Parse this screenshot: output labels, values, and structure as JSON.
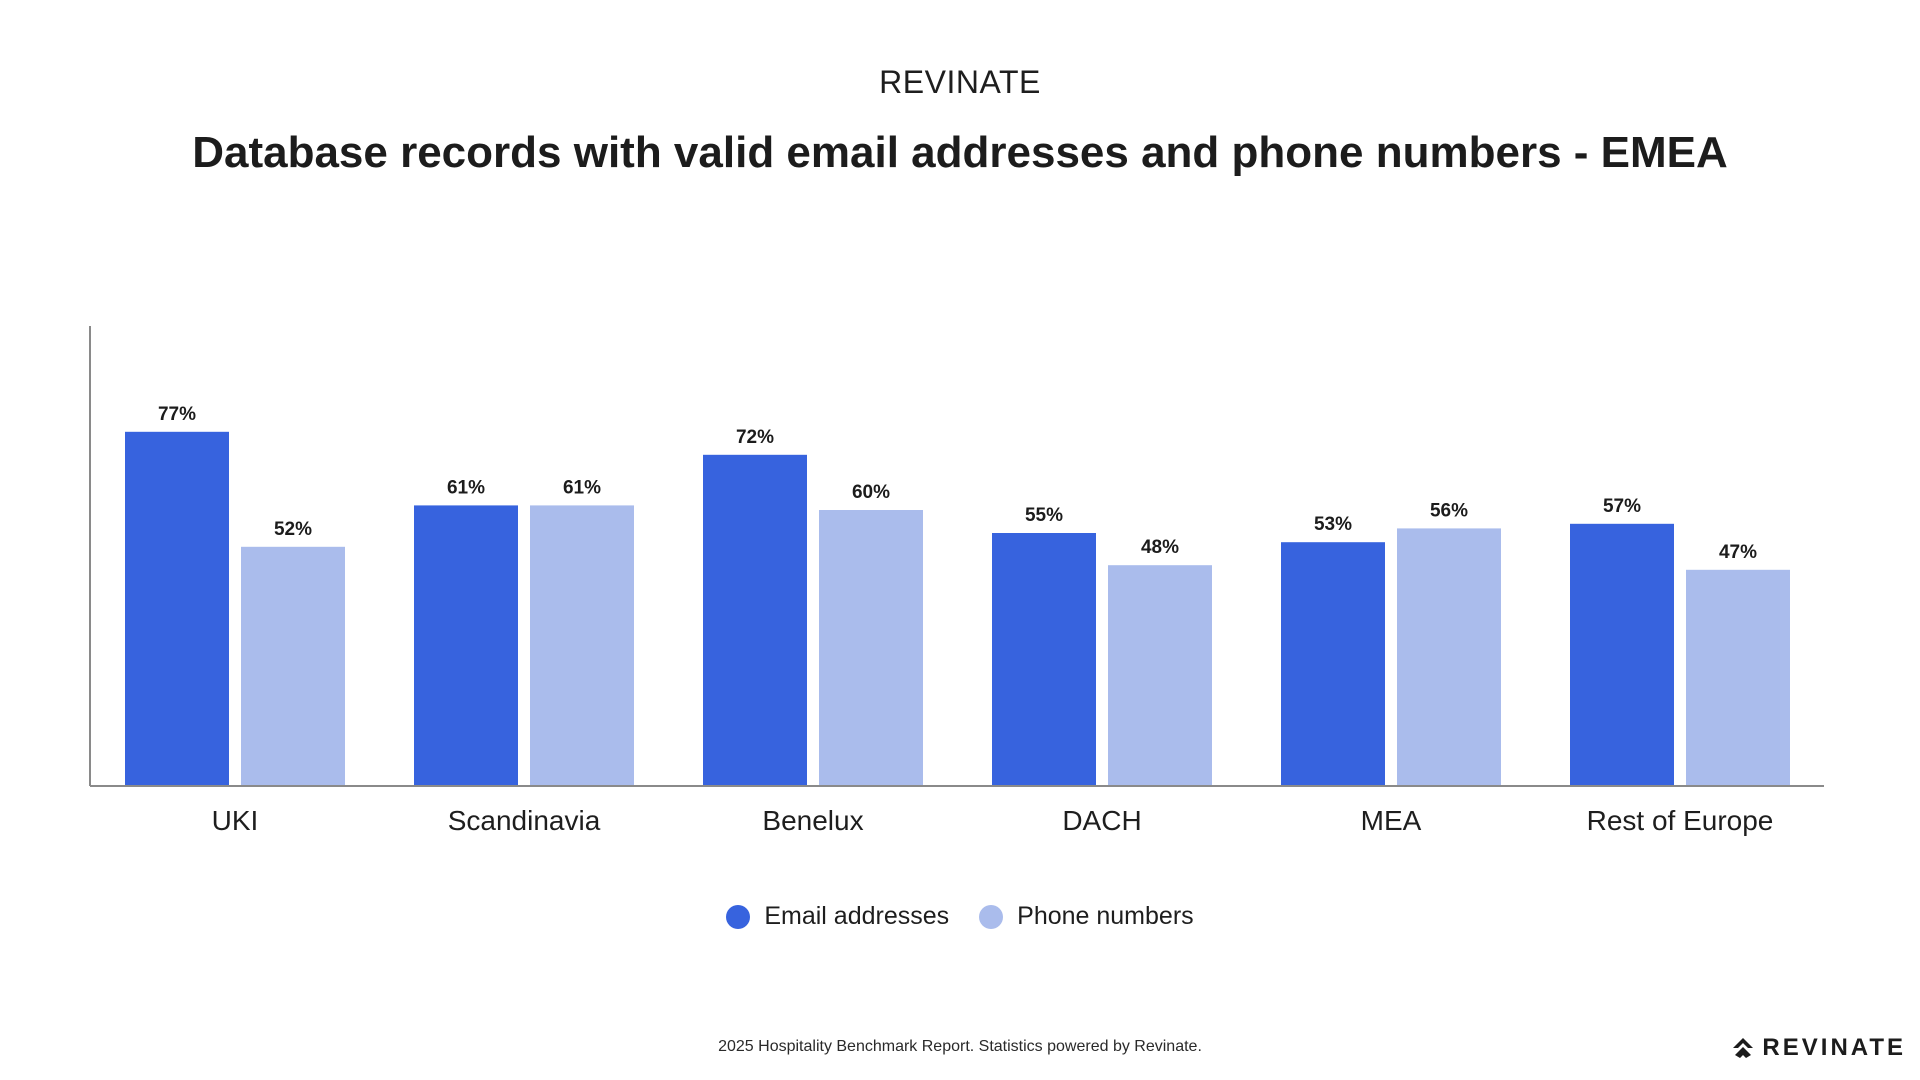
{
  "header": {
    "brand": "REVINATE",
    "title": "Database records with valid email addresses and phone numbers - EMEA"
  },
  "chart_data": {
    "type": "bar",
    "title": "Database records with valid email addresses and phone numbers - EMEA",
    "xlabel": "",
    "ylabel": "",
    "ylim": [
      0,
      100
    ],
    "grid": false,
    "legend_position": "bottom-center",
    "categories": [
      "UKI",
      "Scandinavia",
      "Benelux",
      "DACH",
      "MEA",
      "Rest of Europe"
    ],
    "series": [
      {
        "name": "Email addresses",
        "values": [
          77,
          61,
          72,
          55,
          53,
          57
        ],
        "labels": [
          "77%",
          "61%",
          "72%",
          "55%",
          "53%",
          "57%"
        ],
        "color": "#3763de"
      },
      {
        "name": "Phone numbers",
        "values": [
          52,
          61,
          60,
          48,
          56,
          47
        ],
        "labels": [
          "52%",
          "61%",
          "60%",
          "48%",
          "56%",
          "47%"
        ],
        "color": "#aabcec"
      }
    ]
  },
  "footer": {
    "text": "2025 Hospitality Benchmark Report. Statistics powered by Revinate.",
    "logo_text": "REVINATE",
    "logo_icon": "revinate-logo-icon"
  },
  "colors": {
    "email": "#3763de",
    "phone": "#aabcec",
    "axis": "#8a8a8a"
  }
}
